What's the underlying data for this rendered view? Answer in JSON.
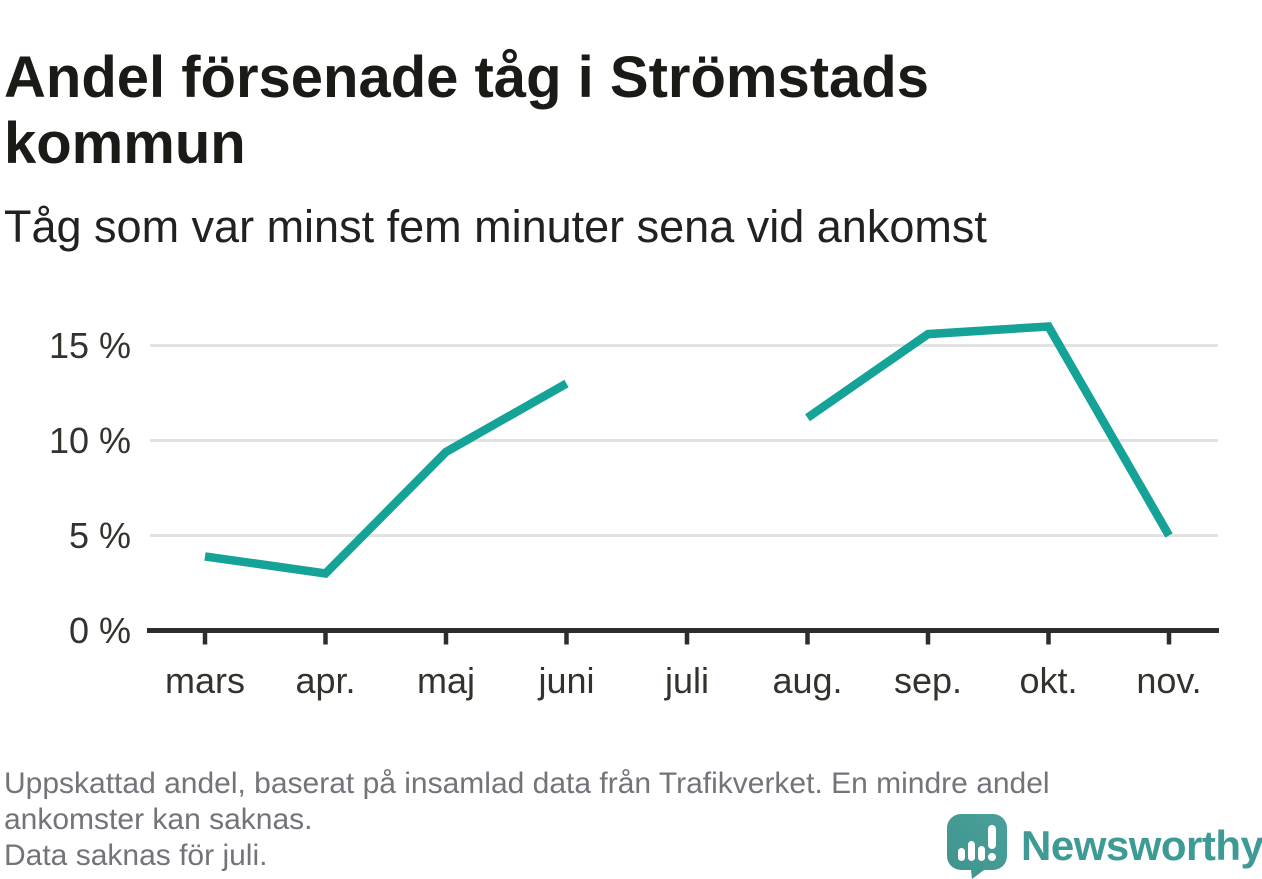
{
  "header": {
    "title": "Andel försenade tåg i Strömstads kommun",
    "subtitle": "Tåg som var minst fem minuter sena vid ankomst"
  },
  "chart_data": {
    "type": "line",
    "title": "Andel försenade tåg i Strömstads kommun",
    "subtitle": "Tåg som var minst fem minuter sena vid ankomst",
    "categories": [
      "mars",
      "apr.",
      "maj",
      "juni",
      "juli",
      "aug.",
      "sep.",
      "okt.",
      "nov."
    ],
    "series": [
      {
        "name": "Andel försenade tåg",
        "values": [
          3.9,
          3.0,
          9.4,
          13.0,
          null,
          11.2,
          15.6,
          16.0,
          5.0
        ]
      }
    ],
    "unit": "%",
    "ylim": [
      0,
      17
    ],
    "yticks": [
      0,
      5,
      10,
      15
    ],
    "ytick_labels": [
      "0 %",
      "5 %",
      "10 %",
      "15 %"
    ],
    "grid": true,
    "legend": "none",
    "missing_data_note": "Data saknas för juli.",
    "colors": {
      "line": "#14a396",
      "gridline": "#e2e2e2",
      "axis": "#2d2d2d",
      "tick": "#2d2d2d",
      "axis_label": "#33332e"
    }
  },
  "footer": {
    "lines": [
      "Uppskattad andel, baserat på insamlad data från Trafikverket. En mindre andel",
      "ankomster kan saknas.",
      "Data saknas för juli."
    ],
    "brand_name": "Newsworthy",
    "brand_color": "#3e9a94",
    "brand_icon": "newsworthy-bar-chart-speech-bubble"
  }
}
